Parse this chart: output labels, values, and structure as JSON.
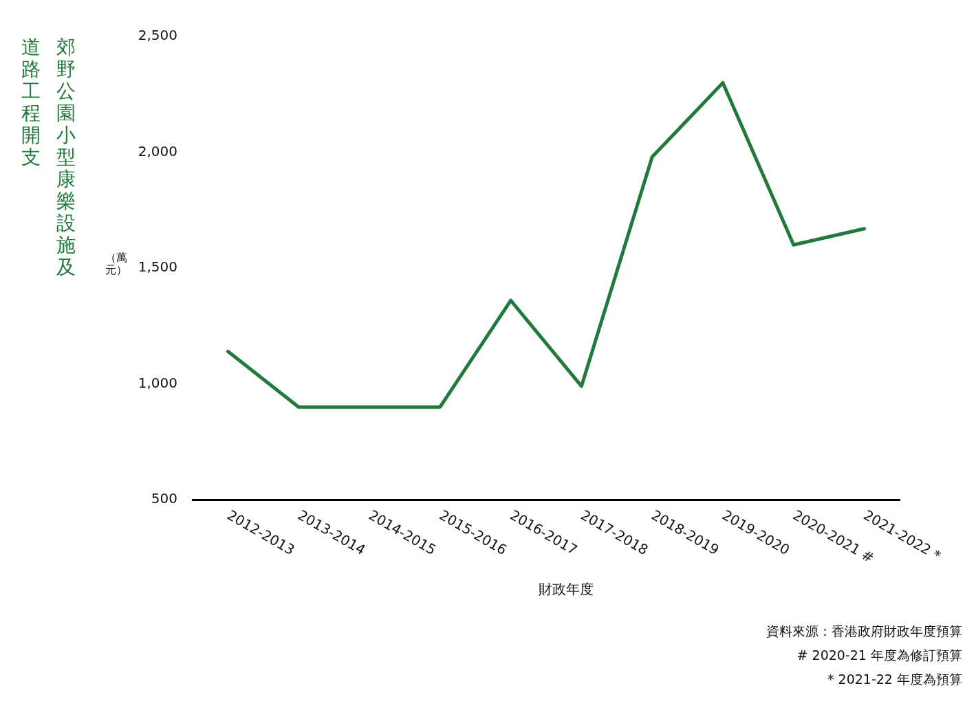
{
  "chart_data": {
    "type": "line",
    "title": "郊野公園小型康樂設施及道路工程開支",
    "ylabel": "（萬元）",
    "xlabel": "財政年度",
    "categories": [
      "2012-2013",
      "2013-2014",
      "2014-2015",
      "2015-2016",
      "2016-2017",
      "2017-2018",
      "2018-2019",
      "2019-2020",
      "2020-2021 #",
      "2021-2022 *"
    ],
    "series": [
      {
        "color": "#217a3c",
        "values": [
          1140,
          900,
          900,
          900,
          1360,
          990,
          1980,
          2300,
          1600,
          1670
        ]
      }
    ],
    "ylim": [
      500,
      2500
    ],
    "yticks": [
      500,
      {
        "value": 1000,
        "label": "1,000"
      },
      {
        "value": 1500,
        "label": "1,500"
      },
      {
        "value": 2000,
        "label": "2,000"
      },
      {
        "value": 2500,
        "label": "2,500"
      }
    ],
    "grid": false,
    "legend": false,
    "marker": "none",
    "line_style": "solid",
    "annotations": [
      "資料來源：香港政府財政年度預算",
      "# 2020-21 年度為修訂預算",
      "* 2021-22 年度為預算"
    ]
  }
}
